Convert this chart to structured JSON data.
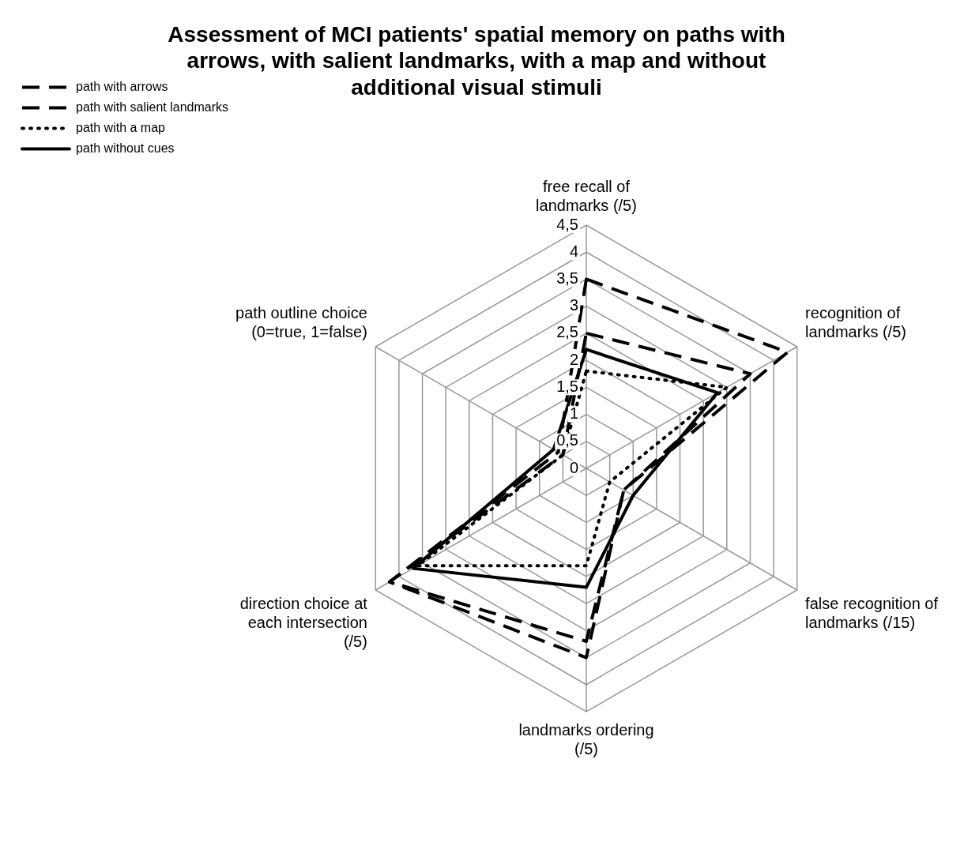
{
  "chart_data": {
    "type": "radar",
    "title": "Assessment of MCI patients' spatial memory on paths with arrows, with salient landmarks, with a map and without additional visual stimuli",
    "categories": [
      "free recall of landmarks (/5)",
      "recognition of landmarks (/5)",
      "false recognition of landmarks (/15)",
      "landmarks ordering (/5)",
      "direction choice at each intersection (/5)",
      "path outline choice (0=true, 1=false)"
    ],
    "series": [
      {
        "name": "path with arrows",
        "color": "#000000",
        "line_style": "dashed",
        "values": [
          2.5,
          3.5,
          0.8,
          3.2,
          4.2,
          0.5
        ]
      },
      {
        "name": "path with salient landmarks",
        "color": "#000000",
        "line_style": "dashed",
        "values": [
          3.5,
          4.3,
          0.8,
          3.5,
          4.2,
          0.6
        ]
      },
      {
        "name": "path with a map",
        "color": "#000000",
        "line_style": "dotted",
        "values": [
          1.8,
          3.0,
          0.5,
          1.8,
          3.6,
          0.5
        ]
      },
      {
        "name": "path without cues",
        "color": "#000000",
        "line_style": "solid",
        "values": [
          2.2,
          2.8,
          1.0,
          2.2,
          3.7,
          0.7
        ]
      }
    ],
    "ylim": [
      0,
      4.5
    ],
    "yticks": [
      0,
      {
        "value": 0.5,
        "label": "0,5"
      },
      1,
      {
        "value": 1.5,
        "label": "1,5"
      },
      2,
      {
        "value": 2.5,
        "label": "2,5"
      },
      3,
      {
        "value": 3.5,
        "label": "3,5"
      },
      4,
      {
        "value": 4.5,
        "label": "4,5"
      }
    ],
    "grid": true,
    "legend": "top left",
    "marker": "none"
  }
}
